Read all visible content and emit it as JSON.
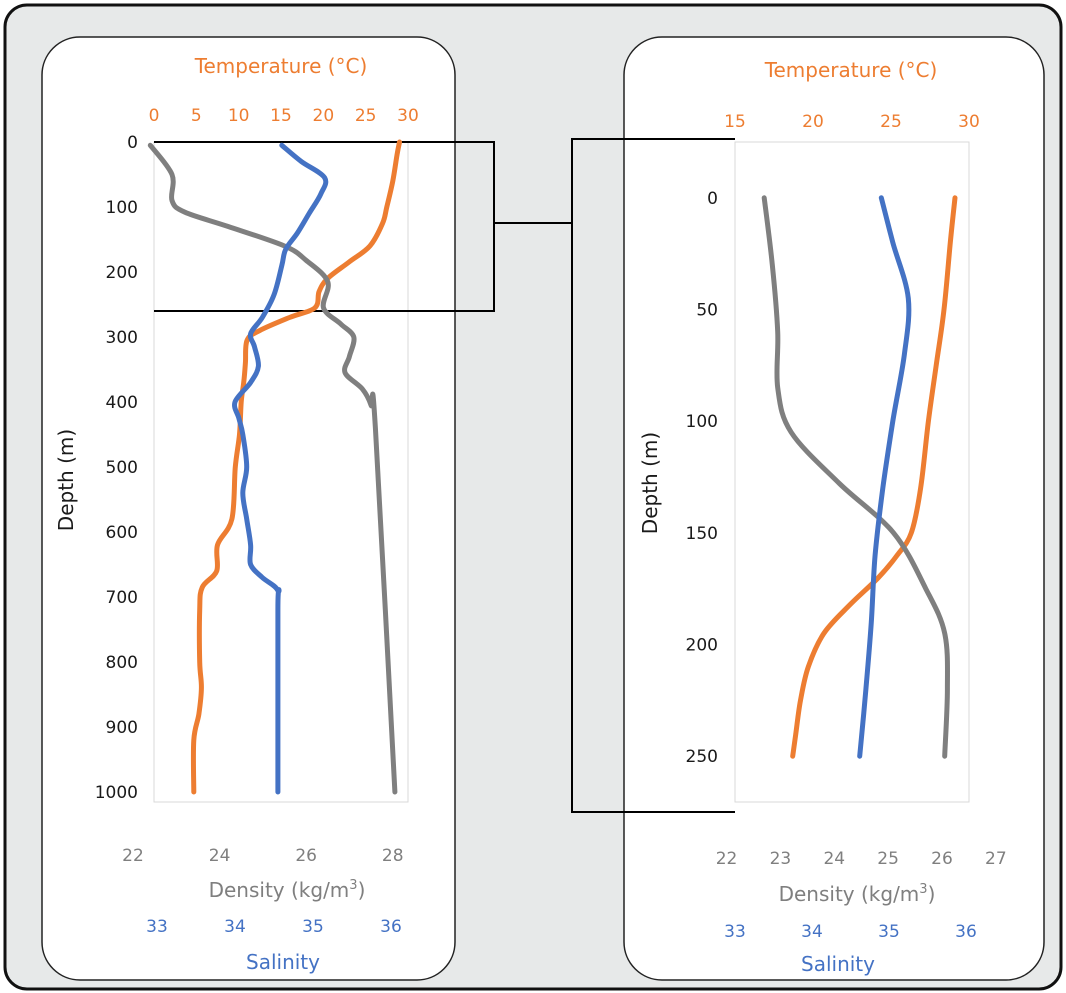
{
  "colors": {
    "background": "#E7E9E9",
    "panel": "#FFFFFF",
    "temperature": "#ED7D31",
    "density": "#7F7F7F",
    "salinity": "#4472C4",
    "axis_text": "#1A1A1A"
  },
  "chart_data": [
    {
      "type": "line",
      "panel": "left",
      "temperature_axis": {
        "label": "Temperature (°C)",
        "range": [
          0,
          30
        ],
        "ticks": [
          "0",
          "5",
          "10",
          "15",
          "20",
          "25",
          "30"
        ],
        "position": "top"
      },
      "depth_axis": {
        "label": "Depth (m)",
        "range": [
          0,
          1000
        ],
        "ticks": [
          "0",
          "100",
          "200",
          "300",
          "400",
          "500",
          "600",
          "700",
          "800",
          "900",
          "1000"
        ],
        "inverted": true
      },
      "density_axis": {
        "label_prefix": "Density (kg/m",
        "label_sup": "3",
        "label_suffix": ")",
        "range": [
          22,
          29
        ],
        "ticks": [
          "22",
          "24",
          "26",
          "28"
        ],
        "position": "bottom"
      },
      "salinity_axis": {
        "label": "Salinity",
        "range": [
          33,
          36
        ],
        "ticks": [
          "33",
          "34",
          "35",
          "36"
        ],
        "position": "bottom"
      },
      "grid": false,
      "series": [
        {
          "name": "Temperature (°C)",
          "axis": "temperature",
          "points": [
            [
              29,
              0
            ],
            [
              28.7,
              20
            ],
            [
              28.2,
              60
            ],
            [
              27.5,
              100
            ],
            [
              27,
              125
            ],
            [
              25.5,
              160
            ],
            [
              23,
              185
            ],
            [
              20.5,
              210
            ],
            [
              19.5,
              230
            ],
            [
              19,
              255
            ],
            [
              16,
              270
            ],
            [
              12.5,
              290
            ],
            [
              11,
              305
            ],
            [
              10.8,
              340
            ],
            [
              10.6,
              370
            ],
            [
              10.3,
              400
            ],
            [
              10.1,
              450
            ],
            [
              9.6,
              500
            ],
            [
              9.2,
              580
            ],
            [
              7.5,
              620
            ],
            [
              7.4,
              660
            ],
            [
              5.7,
              685
            ],
            [
              5.4,
              720
            ],
            [
              5.4,
              800
            ],
            [
              5.6,
              840
            ],
            [
              5.3,
              880
            ],
            [
              4.7,
              920
            ],
            [
              4.7,
              1000
            ]
          ]
        },
        {
          "name": "Density (kg/m³)",
          "axis": "density",
          "points": [
            [
              22.4,
              5
            ],
            [
              22.9,
              50
            ],
            [
              22.9,
              90
            ],
            [
              23.2,
              108
            ],
            [
              24.2,
              130
            ],
            [
              25.5,
              160
            ],
            [
              26,
              182
            ],
            [
              26.5,
              215
            ],
            [
              26.4,
              255
            ],
            [
              26.8,
              280
            ],
            [
              27.1,
              300
            ],
            [
              27,
              330
            ],
            [
              26.9,
              355
            ],
            [
              27.3,
              380
            ],
            [
              27.5,
              405
            ],
            [
              27.6,
              440
            ],
            [
              28.05,
              1000
            ]
          ]
        },
        {
          "name": "Salinity",
          "axis": "salinity",
          "points": [
            [
              34.6,
              5
            ],
            [
              34.85,
              30
            ],
            [
              35.15,
              55
            ],
            [
              35.1,
              80
            ],
            [
              34.95,
              110
            ],
            [
              34.8,
              140
            ],
            [
              34.65,
              165
            ],
            [
              34.6,
              190
            ],
            [
              34.5,
              235
            ],
            [
              34.35,
              270
            ],
            [
              34.2,
              295
            ],
            [
              34.25,
              315
            ],
            [
              34.3,
              345
            ],
            [
              34.2,
              370
            ],
            [
              34.0,
              400
            ],
            [
              34.05,
              425
            ],
            [
              34.1,
              450
            ],
            [
              34.15,
              500
            ],
            [
              34.1,
              540
            ],
            [
              34.15,
              580
            ],
            [
              34.2,
              620
            ],
            [
              34.2,
              650
            ],
            [
              34.35,
              670
            ],
            [
              34.55,
              690
            ],
            [
              34.55,
              720
            ],
            [
              34.55,
              1000
            ]
          ]
        }
      ]
    },
    {
      "type": "line",
      "panel": "right",
      "temperature_axis": {
        "label": "Temperature (°C)",
        "range": [
          15,
          30
        ],
        "ticks": [
          "15",
          "20",
          "25",
          "30"
        ],
        "position": "top"
      },
      "depth_axis": {
        "label": "Depth (m)",
        "range": [
          -25,
          275
        ],
        "ticks": [
          "0",
          "50",
          "100",
          "150",
          "200",
          "250"
        ],
        "inverted": true
      },
      "density_axis": {
        "label_prefix": "Density (kg/m",
        "label_sup": "3",
        "label_suffix": ")",
        "range": [
          21.6,
          27.3
        ],
        "ticks": [
          "22",
          "23",
          "24",
          "25",
          "26",
          "27"
        ],
        "position": "bottom"
      },
      "salinity_axis": {
        "label": "Salinity",
        "range": [
          33,
          36
        ],
        "ticks": [
          "33",
          "34",
          "35",
          "36"
        ],
        "position": "bottom"
      },
      "grid": false,
      "series": [
        {
          "name": "Temperature (°C)",
          "axis": "temperature",
          "points": [
            [
              29.1,
              0
            ],
            [
              28.8,
              20
            ],
            [
              28.4,
              50
            ],
            [
              27.9,
              75
            ],
            [
              27.4,
              100
            ],
            [
              26.9,
              130
            ],
            [
              26.3,
              150
            ],
            [
              25.4,
              160
            ],
            [
              24.2,
              170
            ],
            [
              22.4,
              182
            ],
            [
              20.7,
              195
            ],
            [
              19.7,
              210
            ],
            [
              19.2,
              225
            ],
            [
              18.9,
              240
            ],
            [
              18.7,
              250
            ]
          ]
        },
        {
          "name": "Density (kg/m³)",
          "axis": "density",
          "points": [
            [
              22.7,
              0
            ],
            [
              22.85,
              30
            ],
            [
              22.95,
              60
            ],
            [
              22.95,
              85
            ],
            [
              23.2,
              105
            ],
            [
              24.1,
              128
            ],
            [
              25.1,
              150
            ],
            [
              25.7,
              175
            ],
            [
              26.05,
              195
            ],
            [
              26.1,
              220
            ],
            [
              26.05,
              250
            ]
          ]
        },
        {
          "name": "Salinity",
          "axis": "salinity",
          "points": [
            [
              34.9,
              0
            ],
            [
              35.05,
              20
            ],
            [
              35.25,
              45
            ],
            [
              35.2,
              70
            ],
            [
              35.05,
              100
            ],
            [
              34.92,
              130
            ],
            [
              34.82,
              160
            ],
            [
              34.77,
              190
            ],
            [
              34.7,
              220
            ],
            [
              34.62,
              250
            ]
          ]
        }
      ]
    }
  ]
}
